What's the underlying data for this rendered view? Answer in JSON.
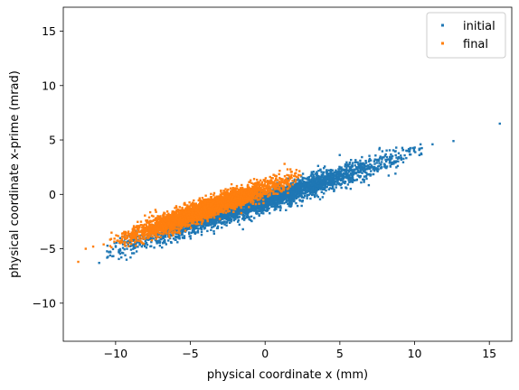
{
  "chart_data": {
    "type": "scatter",
    "title": "",
    "xlabel": "physical coordinate x (mm)",
    "ylabel": "physical coordinate x-prime (mrad)",
    "xlim": [
      -13.5,
      16.5
    ],
    "ylim": [
      -13.5,
      17.2
    ],
    "xticks": [
      -10,
      -5,
      0,
      5,
      10,
      15
    ],
    "xtick_labels": [
      "−10",
      "−5",
      "0",
      "5",
      "10",
      "15"
    ],
    "yticks": [
      -10,
      -5,
      0,
      5,
      10,
      15
    ],
    "ytick_labels": [
      "−10",
      "−5",
      "0",
      "5",
      "10",
      "15"
    ],
    "grid": false,
    "legend_position": "top-right",
    "series": [
      {
        "name": "initial",
        "color": "#1f77b4",
        "distribution": {
          "x_range": [
            -10,
            10
          ],
          "slope": 0.445,
          "intercept": -0.55,
          "spread": 0.9,
          "approx_count": 3500
        },
        "points": [
          {
            "x": -11.1,
            "y": -6.3
          },
          {
            "x": -9.5,
            "y": -5.4
          },
          {
            "x": -9.0,
            "y": -5.8
          },
          {
            "x": 9.5,
            "y": 4.0
          },
          {
            "x": 10.4,
            "y": 4.6
          },
          {
            "x": 11.2,
            "y": 4.6
          },
          {
            "x": 12.6,
            "y": 4.9
          },
          {
            "x": 15.7,
            "y": 6.5
          }
        ]
      },
      {
        "name": "final",
        "color": "#ff7f0e",
        "distribution": {
          "x_range": [
            -9.8,
            1.8
          ],
          "slope": 0.48,
          "intercept": 0.55,
          "spread": 0.8,
          "approx_count": 3500
        },
        "points": [
          {
            "x": -12.5,
            "y": -6.2
          },
          {
            "x": -12.0,
            "y": -5.0
          },
          {
            "x": -11.5,
            "y": -4.8
          },
          {
            "x": -10.8,
            "y": -4.6
          },
          {
            "x": -10.3,
            "y": -4.1
          },
          {
            "x": 1.3,
            "y": 2.8
          },
          {
            "x": 1.5,
            "y": 2.3
          }
        ]
      }
    ]
  }
}
